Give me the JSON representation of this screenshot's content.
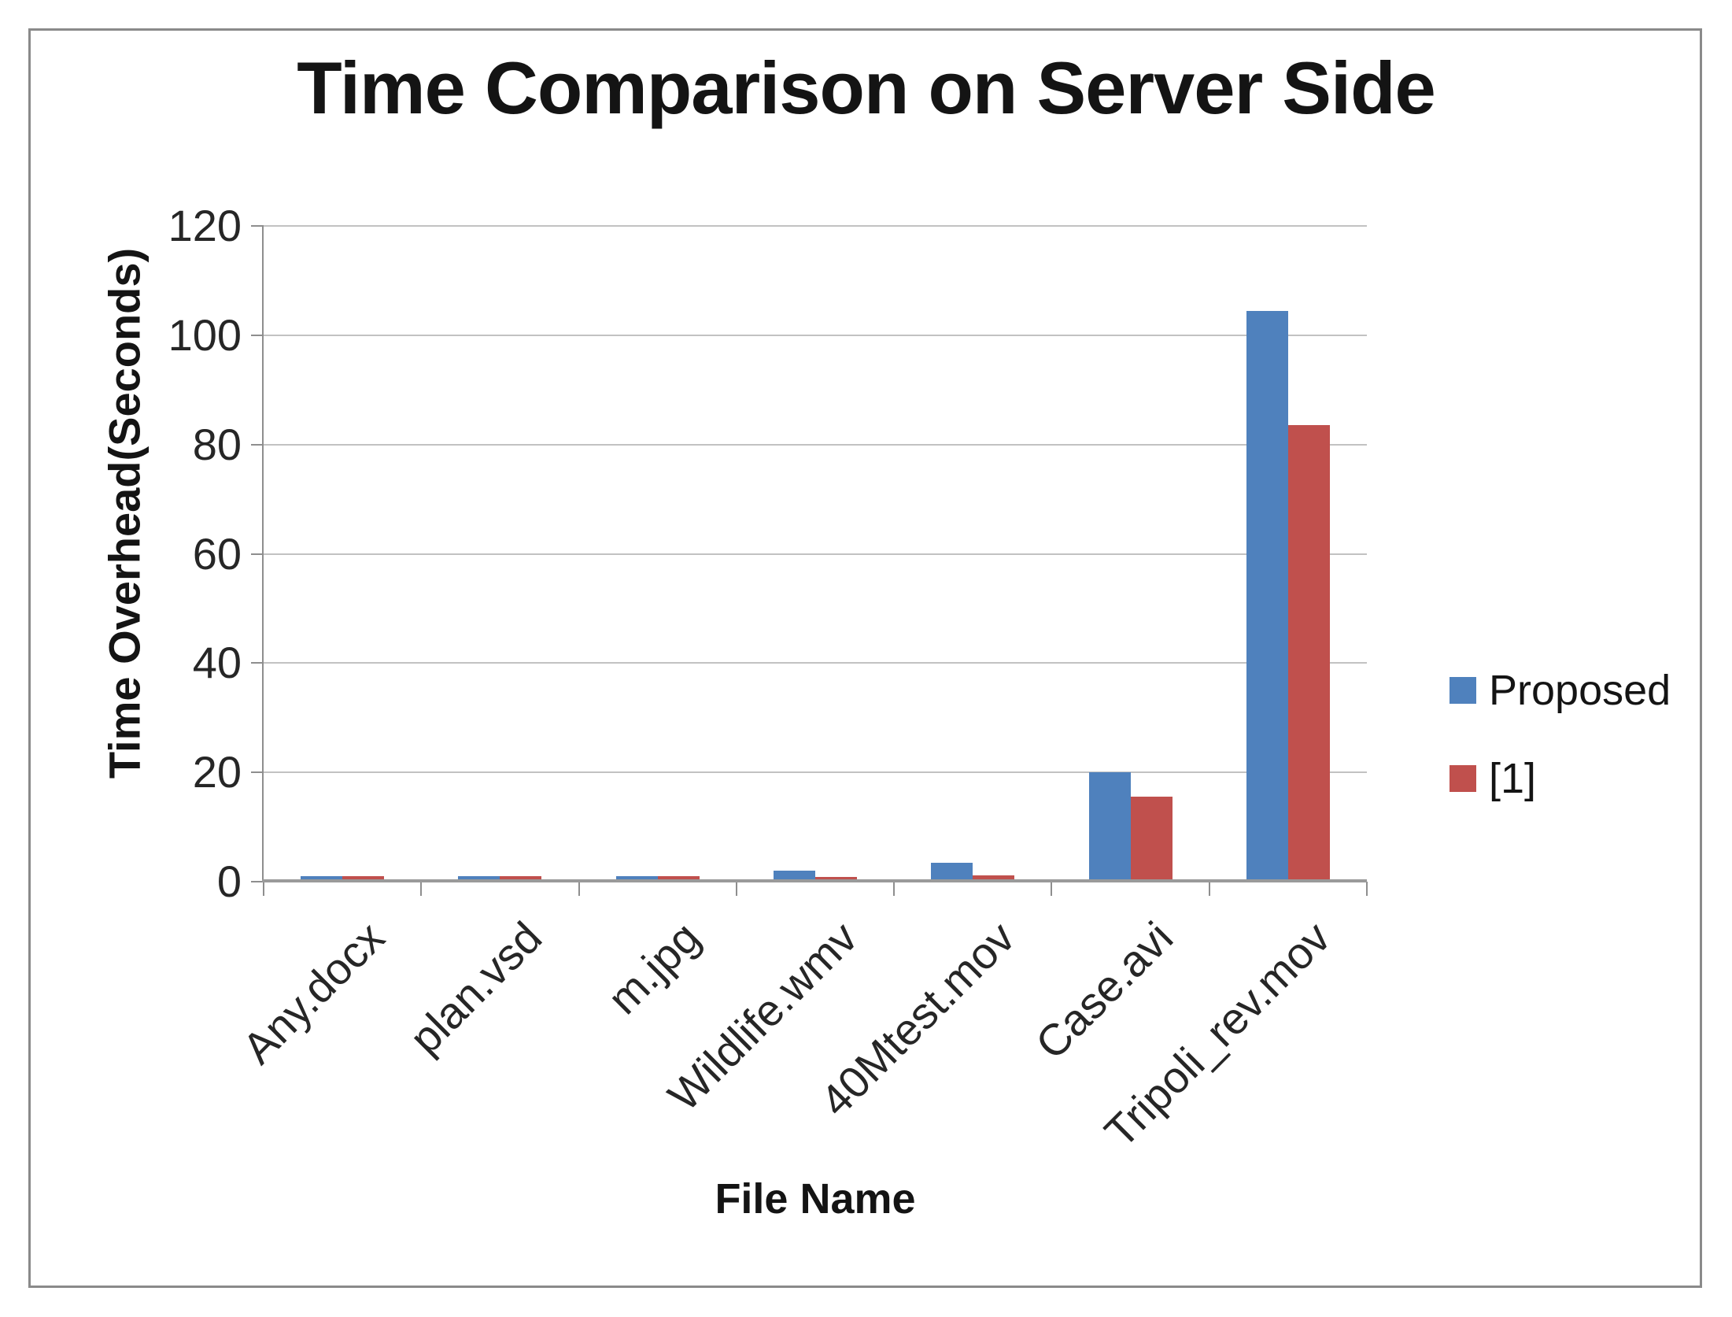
{
  "chart_data": {
    "type": "bar",
    "title": "Time Comparison on Server Side",
    "xlabel": "File Name",
    "ylabel": "Time Overhead(Seconds)",
    "ylim": [
      0,
      120
    ],
    "yticks": [
      0,
      20,
      40,
      60,
      80,
      100,
      120
    ],
    "grid": true,
    "legend_position": "right",
    "categories": [
      "Any.docx",
      "plan.vsd",
      "m.jpg",
      "Wildlife.wmv",
      "40Mtest.mov",
      "Case.avi",
      "Tripoli_rev.mov"
    ],
    "series": [
      {
        "name": "Proposed",
        "color": "#4F81BD",
        "values": [
          1,
          1,
          1,
          2,
          3.5,
          20,
          104.5
        ]
      },
      {
        "name": "[1]",
        "color": "#C0504D",
        "values": [
          1,
          1,
          1,
          0.8,
          1.2,
          15.5,
          83.5
        ]
      }
    ],
    "colors": {
      "gridline": "#C2C2C2",
      "axis": "#8E8E8E",
      "frame_border": "#8A8A8A",
      "text": "#141414"
    }
  }
}
